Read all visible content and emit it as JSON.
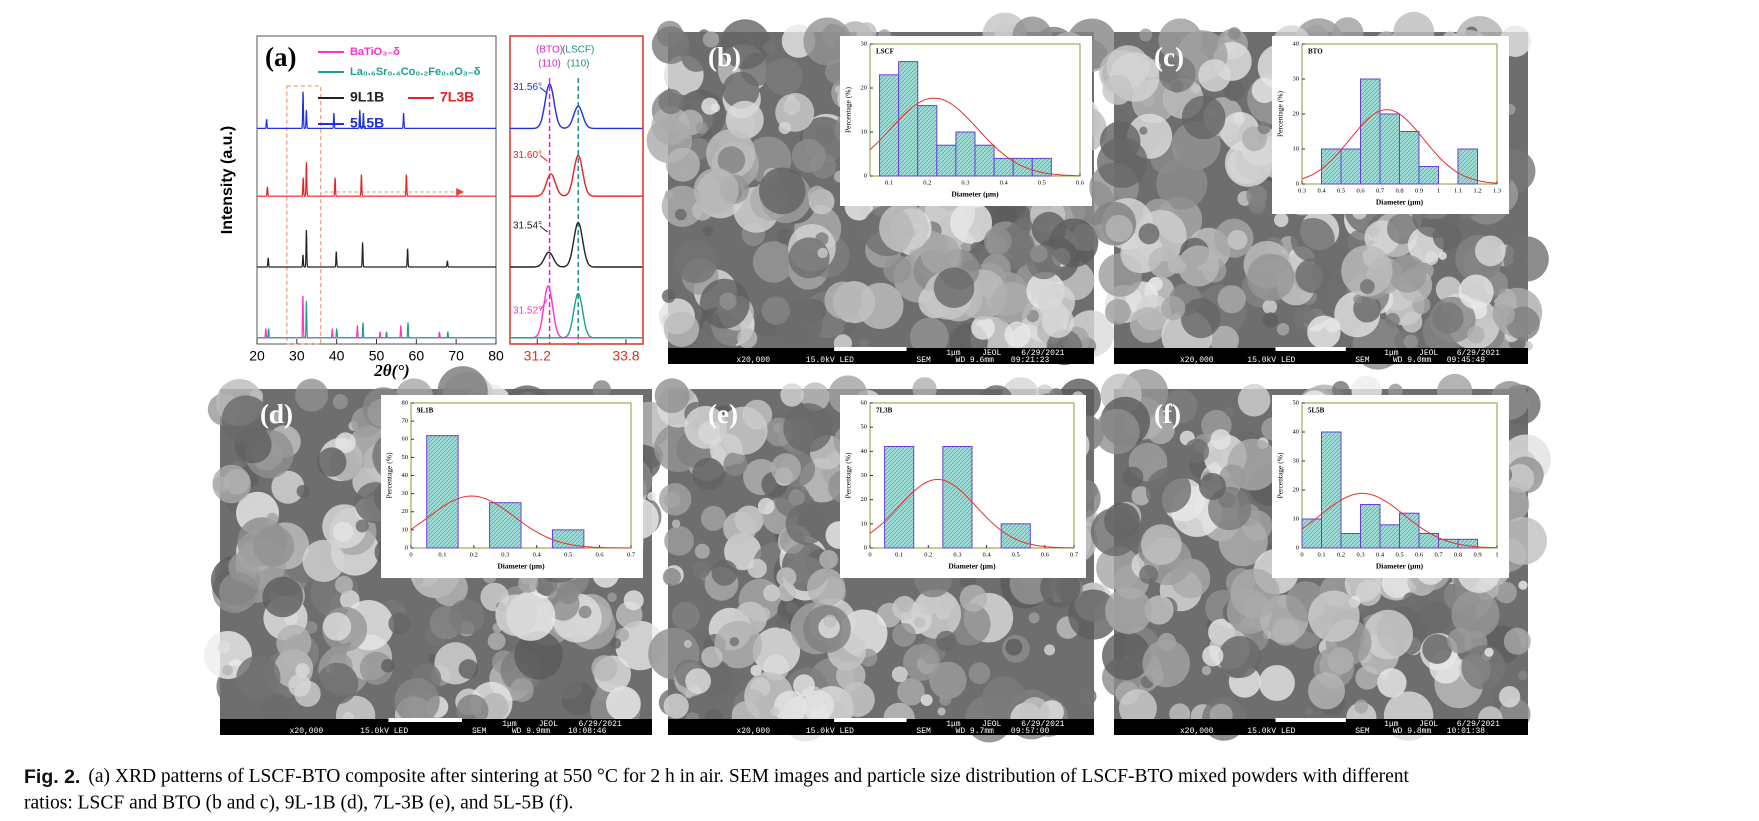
{
  "chart_data": [
    {
      "type": "xrd",
      "panel": "(a)",
      "ylabel": "Intensity (a.u.)",
      "xlabel": "2θ(°)",
      "xlim": [
        20,
        80
      ],
      "xticks": [
        20,
        30,
        40,
        50,
        60,
        70,
        80
      ],
      "ylim": [
        0,
        100
      ],
      "inset_xlim": [
        30.4,
        34.3
      ],
      "inset_xticks": [
        31.2,
        33.8
      ],
      "markers": [
        {
          "name": "(BTO)",
          "hkl": "(110)",
          "x": 31.56,
          "color": "#e020d0"
        },
        {
          "name": "(LSCF)",
          "hkl": "(110)",
          "x": 32.4,
          "color": "#1f8f80"
        }
      ],
      "series": [
        {
          "name": "BaTiO₃₋δ",
          "color": "#ff30d0",
          "offset": 2,
          "peak_label": "31.52°",
          "peaks": [
            [
              22.2,
              3
            ],
            [
              31.52,
              14
            ],
            [
              38.9,
              3
            ],
            [
              45.2,
              4
            ],
            [
              50.9,
              2
            ],
            [
              56.1,
              4
            ],
            [
              65.8,
              2
            ]
          ]
        },
        {
          "name": "La₀.₆Sr₀.₄Co₀.₂Fe₀.₈O₃₋δ",
          "color": "#1f9e8a",
          "offset": 2,
          "peaks": [
            [
              22.9,
              3
            ],
            [
              32.4,
              12
            ],
            [
              40.0,
              3
            ],
            [
              46.6,
              5
            ],
            [
              52.5,
              2
            ],
            [
              57.9,
              5
            ],
            [
              67.9,
              2
            ]
          ]
        },
        {
          "name": "9L1B",
          "color": "#222222",
          "offset": 25,
          "peak_label": "31.54°",
          "peaks": [
            [
              22.8,
              3
            ],
            [
              31.54,
              4
            ],
            [
              32.4,
              12
            ],
            [
              39.9,
              5
            ],
            [
              46.5,
              8
            ],
            [
              57.8,
              6
            ],
            [
              67.8,
              2
            ]
          ]
        },
        {
          "name": "7L3B",
          "color": "#e82020",
          "offset": 48,
          "peak_label": "31.60°",
          "peaks": [
            [
              22.6,
              3
            ],
            [
              31.6,
              6
            ],
            [
              32.4,
              11
            ],
            [
              39.6,
              6
            ],
            [
              46.2,
              7
            ],
            [
              57.5,
              7
            ]
          ]
        },
        {
          "name": "5L5B",
          "color": "#2030e0",
          "offset": 70,
          "peak_label": "31.56°",
          "peaks": [
            [
              22.4,
              3
            ],
            [
              31.56,
              12
            ],
            [
              32.4,
              6
            ],
            [
              39.3,
              5
            ],
            [
              45.8,
              6
            ],
            [
              46.7,
              5
            ],
            [
              56.8,
              5
            ]
          ]
        }
      ]
    },
    {
      "type": "histogram",
      "title": "LSCF",
      "xlabel": "Diameter (μm)",
      "ylabel": "Percentage (%)",
      "bins": [
        0.075,
        0.125,
        0.175,
        0.225,
        0.275,
        0.325,
        0.375,
        0.425,
        0.475,
        0.525
      ],
      "values": [
        23,
        26,
        16,
        7,
        10,
        7,
        4,
        4,
        4
      ],
      "xlim": [
        0.05,
        0.6
      ],
      "xticks": [
        0.1,
        0.2,
        0.3,
        0.4,
        0.5,
        0.6
      ],
      "ylim": [
        0,
        30
      ],
      "yticks": [
        0,
        10,
        20,
        30
      ]
    },
    {
      "type": "histogram",
      "title": "BTO",
      "xlabel": "Diameter (μm)",
      "ylabel": "Percentage (%)",
      "bins": [
        0.4,
        0.5,
        0.6,
        0.7,
        0.8,
        0.9,
        1.0,
        1.1,
        1.2
      ],
      "values": [
        10,
        10,
        30,
        20,
        15,
        5,
        0,
        10
      ],
      "xlim": [
        0.3,
        1.3
      ],
      "xticks": [
        0.3,
        0.4,
        0.5,
        0.6,
        0.7,
        0.8,
        0.9,
        1.0,
        1.1,
        1.2,
        1.3
      ],
      "ylim": [
        0,
        40
      ],
      "yticks": [
        0,
        10,
        20,
        30,
        40
      ]
    },
    {
      "type": "histogram",
      "title": "9L1B",
      "xlabel": "Diameter (μm)",
      "ylabel": "Percentage (%)",
      "bins": [
        0.05,
        0.15,
        0.25,
        0.35,
        0.45,
        0.55
      ],
      "values": [
        62,
        0,
        25,
        0,
        10
      ],
      "xlim": [
        0,
        0.7
      ],
      "xticks": [
        0.0,
        0.1,
        0.2,
        0.3,
        0.4,
        0.5,
        0.6,
        0.7
      ],
      "ylim": [
        0,
        80
      ],
      "yticks": [
        0,
        10,
        20,
        30,
        40,
        50,
        60,
        70,
        80
      ]
    },
    {
      "type": "histogram",
      "title": "7L3B",
      "xlabel": "Diameter (μm)",
      "ylabel": "Percentage (%)",
      "bins": [
        0.05,
        0.15,
        0.25,
        0.35,
        0.45,
        0.55
      ],
      "values": [
        42,
        0,
        42,
        0,
        10
      ],
      "xlim": [
        0,
        0.7
      ],
      "xticks": [
        0.0,
        0.1,
        0.2,
        0.3,
        0.4,
        0.5,
        0.6,
        0.7
      ],
      "ylim": [
        0,
        60
      ],
      "yticks": [
        0,
        10,
        20,
        30,
        40,
        50,
        60
      ]
    },
    {
      "type": "histogram",
      "title": "5L5B",
      "xlabel": "Diameter (μm)",
      "ylabel": "Percentage (%)",
      "bins": [
        0.0,
        0.1,
        0.2,
        0.3,
        0.4,
        0.5,
        0.6,
        0.7,
        0.8,
        0.9
      ],
      "values": [
        10,
        40,
        5,
        15,
        8,
        12,
        5,
        3,
        3
      ],
      "xlim": [
        0,
        1.0
      ],
      "xticks": [
        0.0,
        0.1,
        0.2,
        0.3,
        0.4,
        0.5,
        0.6,
        0.7,
        0.8,
        0.9,
        1.0
      ],
      "ylim": [
        0,
        50
      ],
      "yticks": [
        0,
        10,
        20,
        30,
        40,
        50
      ]
    }
  ],
  "panels": [
    {
      "label": "(b)",
      "footer": [
        "x20,000",
        "15.0kV LED",
        "1μm",
        "JEOL",
        "6/29/2021",
        "SEM",
        "WD 9.6mm",
        "09:21:23"
      ]
    },
    {
      "label": "(c)",
      "footer": [
        "x20,000",
        "15.0kV LED",
        "1μm",
        "JEOL",
        "6/29/2021",
        "SEM",
        "WD 9.0mm",
        "09:45:49"
      ]
    },
    {
      "label": "(d)",
      "footer": [
        "x20,000",
        "15.0kV LED",
        "1μm",
        "JEOL",
        "6/29/2021",
        "SEM",
        "WD 9.9mm",
        "10:08:46"
      ]
    },
    {
      "label": "(e)",
      "footer": [
        "x20,000",
        "15.0kV LED",
        "1μm",
        "JEOL",
        "6/29/2021",
        "SEM",
        "WD 9.7mm",
        "09:57:00"
      ]
    },
    {
      "label": "(f)",
      "footer": [
        "x20,000",
        "15.0kV LED",
        "1μm",
        "JEOL",
        "6/29/2021",
        "SEM",
        "WD 9.8mm",
        "10:01:38"
      ]
    }
  ],
  "caption": {
    "label": "Fig. 2.",
    "lines": [
      "(a) XRD patterns of LSCF-BTO composite after sintering at 550 °C for 2 h in air. SEM images and particle size distribution of LSCF-BTO mixed powders with different",
      "ratios: LSCF and BTO (b and c), 9L-1B (d), 7L-3B (e), and 5L-5B (f)."
    ]
  }
}
